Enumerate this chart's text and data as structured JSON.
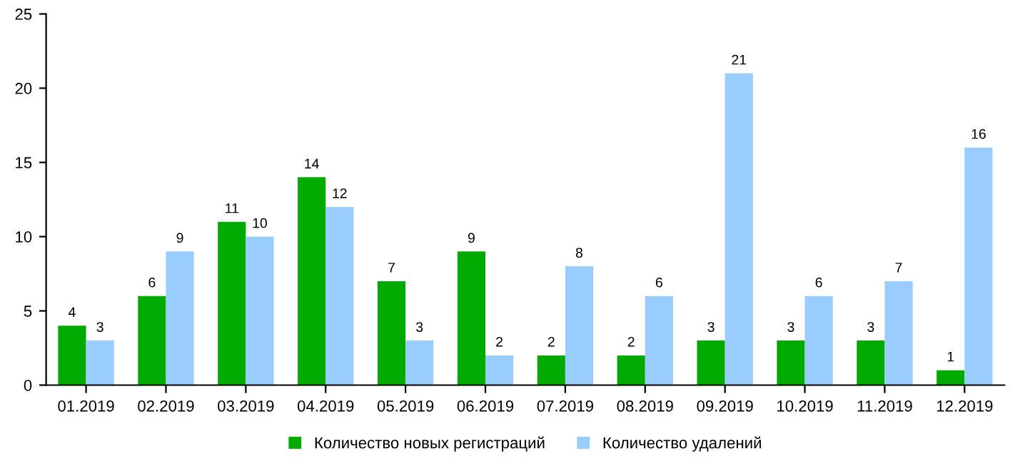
{
  "chart_data": {
    "type": "bar",
    "categories": [
      "01.2019",
      "02.2019",
      "03.2019",
      "04.2019",
      "05.2019",
      "06.2019",
      "07.2019",
      "08.2019",
      "09.2019",
      "10.2019",
      "11.2019",
      "12.2019"
    ],
    "series": [
      {
        "name": "Количество новых регистраций",
        "color": "#00aa00",
        "values": [
          4,
          6,
          11,
          14,
          7,
          9,
          2,
          2,
          3,
          3,
          3,
          1
        ]
      },
      {
        "name": "Количество удалений",
        "color": "#99ccff",
        "values": [
          3,
          9,
          10,
          12,
          3,
          2,
          8,
          6,
          21,
          6,
          7,
          16
        ]
      }
    ],
    "ylim": [
      0,
      25
    ],
    "yticks": [
      0,
      5,
      10,
      15,
      20,
      25
    ],
    "grid": false,
    "legend": "bottom",
    "data_labels": true
  }
}
